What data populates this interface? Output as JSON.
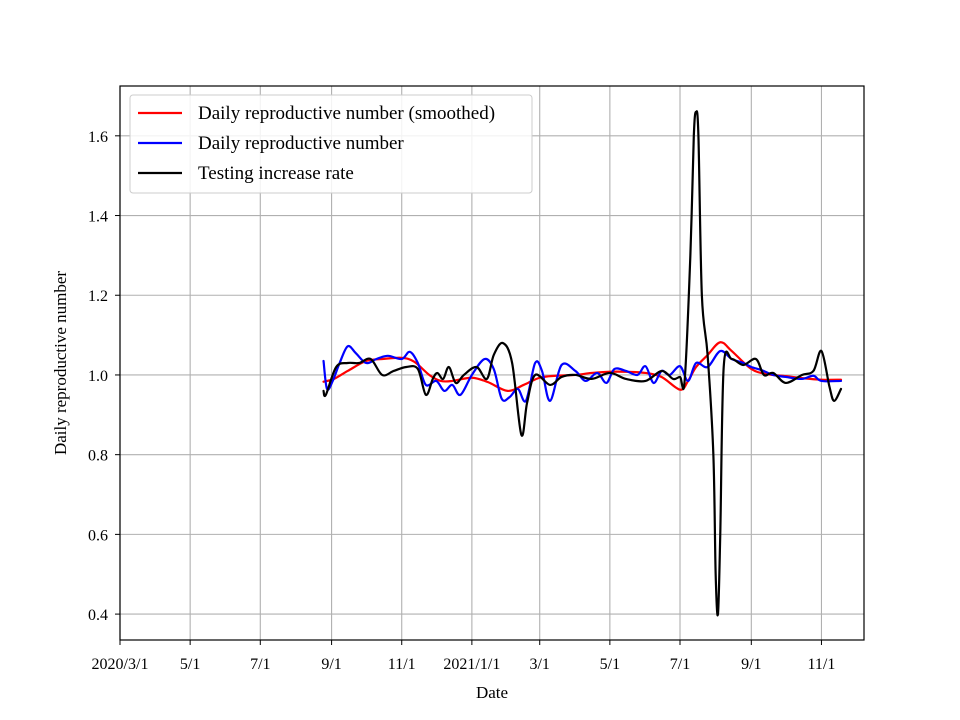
{
  "chart_data": {
    "type": "line",
    "xlabel": "Date",
    "ylabel": "Daily reproductive number",
    "xlim": [
      "2020-03-01",
      "2021-12-08"
    ],
    "ylim": [
      0.335,
      1.725
    ],
    "grid": true,
    "legend_position": "top-left",
    "x_ticks": [
      {
        "date": "2020-03-01",
        "label": "2020/3/1"
      },
      {
        "date": "2020-05-01",
        "label": "5/1"
      },
      {
        "date": "2020-07-01",
        "label": "7/1"
      },
      {
        "date": "2020-09-01",
        "label": "9/1"
      },
      {
        "date": "2020-11-01",
        "label": "11/1"
      },
      {
        "date": "2021-01-01",
        "label": "2021/1/1"
      },
      {
        "date": "2021-03-01",
        "label": "3/1"
      },
      {
        "date": "2021-05-01",
        "label": "5/1"
      },
      {
        "date": "2021-07-01",
        "label": "7/1"
      },
      {
        "date": "2021-09-01",
        "label": "9/1"
      },
      {
        "date": "2021-11-01",
        "label": "11/1"
      }
    ],
    "y_ticks": [
      {
        "value": 0.4,
        "label": "0.4"
      },
      {
        "value": 0.6,
        "label": "0.6"
      },
      {
        "value": 0.8,
        "label": "0.8"
      },
      {
        "value": 1.0,
        "label": "1.0"
      },
      {
        "value": 1.2,
        "label": "1.2"
      },
      {
        "value": 1.4,
        "label": "1.4"
      },
      {
        "value": 1.6,
        "label": "1.6"
      }
    ],
    "series": [
      {
        "name": "Daily reproductive number (smoothed)",
        "color": "#ff0000",
        "points": [
          [
            "2020-08-25",
            0.983
          ],
          [
            "2020-09-03",
            0.99
          ],
          [
            "2020-09-15",
            1.01
          ],
          [
            "2020-10-01",
            1.035
          ],
          [
            "2020-10-15",
            1.04
          ],
          [
            "2020-11-01",
            1.043
          ],
          [
            "2020-11-12",
            1.033
          ],
          [
            "2020-11-25",
            1.0
          ],
          [
            "2020-12-05",
            0.985
          ],
          [
            "2020-12-15",
            0.985
          ],
          [
            "2021-01-01",
            0.993
          ],
          [
            "2021-01-15",
            0.982
          ],
          [
            "2021-02-01",
            0.96
          ],
          [
            "2021-02-15",
            0.975
          ],
          [
            "2021-03-01",
            0.993
          ],
          [
            "2021-03-15",
            0.998
          ],
          [
            "2021-04-01",
            1.0
          ],
          [
            "2021-04-15",
            1.005
          ],
          [
            "2021-05-01",
            1.008
          ],
          [
            "2021-05-15",
            1.008
          ],
          [
            "2021-06-01",
            1.005
          ],
          [
            "2021-06-15",
            0.995
          ],
          [
            "2021-07-01",
            0.963
          ],
          [
            "2021-07-08",
            0.985
          ],
          [
            "2021-07-15",
            1.02
          ],
          [
            "2021-07-25",
            1.05
          ],
          [
            "2021-08-05",
            1.082
          ],
          [
            "2021-08-15",
            1.06
          ],
          [
            "2021-09-01",
            1.015
          ],
          [
            "2021-09-15",
            1.002
          ],
          [
            "2021-10-01",
            0.997
          ],
          [
            "2021-10-15",
            0.992
          ],
          [
            "2021-11-01",
            0.988
          ],
          [
            "2021-11-18",
            0.988
          ]
        ]
      },
      {
        "name": "Daily reproductive number",
        "color": "#0000ff",
        "points": [
          [
            "2020-08-25",
            1.035
          ],
          [
            "2020-08-28",
            0.965
          ],
          [
            "2020-09-02",
            0.985
          ],
          [
            "2020-09-08",
            1.03
          ],
          [
            "2020-09-15",
            1.072
          ],
          [
            "2020-09-22",
            1.055
          ],
          [
            "2020-10-01",
            1.03
          ],
          [
            "2020-10-10",
            1.04
          ],
          [
            "2020-10-20",
            1.048
          ],
          [
            "2020-11-01",
            1.04
          ],
          [
            "2020-11-08",
            1.058
          ],
          [
            "2020-11-15",
            1.03
          ],
          [
            "2020-11-22",
            0.975
          ],
          [
            "2020-12-01",
            0.985
          ],
          [
            "2020-12-08",
            0.96
          ],
          [
            "2020-12-15",
            0.975
          ],
          [
            "2020-12-22",
            0.95
          ],
          [
            "2021-01-01",
            1.0
          ],
          [
            "2021-01-12",
            1.04
          ],
          [
            "2021-01-20",
            1.015
          ],
          [
            "2021-01-27",
            0.94
          ],
          [
            "2021-02-03",
            0.945
          ],
          [
            "2021-02-10",
            0.965
          ],
          [
            "2021-02-17",
            0.935
          ],
          [
            "2021-02-25",
            1.03
          ],
          [
            "2021-03-03",
            1.01
          ],
          [
            "2021-03-10",
            0.935
          ],
          [
            "2021-03-20",
            1.025
          ],
          [
            "2021-04-01",
            1.01
          ],
          [
            "2021-04-10",
            0.985
          ],
          [
            "2021-04-20",
            1.005
          ],
          [
            "2021-04-28",
            0.98
          ],
          [
            "2021-05-05",
            1.015
          ],
          [
            "2021-05-15",
            1.01
          ],
          [
            "2021-05-25",
            1.0
          ],
          [
            "2021-06-01",
            1.022
          ],
          [
            "2021-06-08",
            0.98
          ],
          [
            "2021-06-15",
            1.01
          ],
          [
            "2021-06-22",
            1.0
          ],
          [
            "2021-07-01",
            1.022
          ],
          [
            "2021-07-08",
            0.985
          ],
          [
            "2021-07-15",
            1.03
          ],
          [
            "2021-07-25",
            1.02
          ],
          [
            "2021-08-05",
            1.06
          ],
          [
            "2021-08-15",
            1.04
          ],
          [
            "2021-08-25",
            1.03
          ],
          [
            "2021-09-01",
            1.02
          ],
          [
            "2021-09-10",
            1.012
          ],
          [
            "2021-09-20",
            1.0
          ],
          [
            "2021-10-01",
            0.995
          ],
          [
            "2021-10-15",
            0.99
          ],
          [
            "2021-10-25",
            0.998
          ],
          [
            "2021-11-01",
            0.985
          ],
          [
            "2021-11-18",
            0.985
          ]
        ]
      },
      {
        "name": "Testing increase rate",
        "color": "#000000",
        "points": [
          [
            "2020-08-25",
            0.96
          ],
          [
            "2020-08-27",
            0.95
          ],
          [
            "2020-09-05",
            1.02
          ],
          [
            "2020-09-15",
            1.03
          ],
          [
            "2020-09-25",
            1.03
          ],
          [
            "2020-10-05",
            1.04
          ],
          [
            "2020-10-15",
            1.0
          ],
          [
            "2020-10-25",
            1.01
          ],
          [
            "2020-11-05",
            1.02
          ],
          [
            "2020-11-15",
            1.015
          ],
          [
            "2020-11-22",
            0.95
          ],
          [
            "2020-11-28",
            0.99
          ],
          [
            "2020-12-02",
            1.005
          ],
          [
            "2020-12-07",
            0.99
          ],
          [
            "2020-12-12",
            1.02
          ],
          [
            "2020-12-18",
            0.98
          ],
          [
            "2020-12-25",
            1.0
          ],
          [
            "2021-01-05",
            1.02
          ],
          [
            "2021-01-14",
            0.99
          ],
          [
            "2021-01-20",
            1.05
          ],
          [
            "2021-01-28",
            1.08
          ],
          [
            "2021-02-05",
            1.03
          ],
          [
            "2021-02-13",
            0.85
          ],
          [
            "2021-02-18",
            0.93
          ],
          [
            "2021-02-25",
            1.0
          ],
          [
            "2021-03-10",
            0.975
          ],
          [
            "2021-03-20",
            0.995
          ],
          [
            "2021-04-01",
            1.0
          ],
          [
            "2021-04-15",
            0.99
          ],
          [
            "2021-05-01",
            1.005
          ],
          [
            "2021-05-15",
            0.99
          ],
          [
            "2021-06-01",
            0.985
          ],
          [
            "2021-06-15",
            1.01
          ],
          [
            "2021-06-25",
            0.99
          ],
          [
            "2021-07-01",
            0.995
          ],
          [
            "2021-07-05",
            0.985
          ],
          [
            "2021-07-10",
            1.3
          ],
          [
            "2021-07-13",
            1.6
          ],
          [
            "2021-07-15",
            1.66
          ],
          [
            "2021-07-17",
            1.6
          ],
          [
            "2021-07-20",
            1.2
          ],
          [
            "2021-07-25",
            1.05
          ],
          [
            "2021-07-30",
            0.8
          ],
          [
            "2021-08-01",
            0.5
          ],
          [
            "2021-08-03",
            0.4
          ],
          [
            "2021-08-05",
            0.6
          ],
          [
            "2021-08-08",
            1.02
          ],
          [
            "2021-08-15",
            1.04
          ],
          [
            "2021-08-25",
            1.025
          ],
          [
            "2021-09-05",
            1.04
          ],
          [
            "2021-09-12",
            1.0
          ],
          [
            "2021-09-20",
            1.005
          ],
          [
            "2021-10-01",
            0.98
          ],
          [
            "2021-10-15",
            1.0
          ],
          [
            "2021-10-25",
            1.01
          ],
          [
            "2021-11-01",
            1.06
          ],
          [
            "2021-11-08",
            0.97
          ],
          [
            "2021-11-12",
            0.935
          ],
          [
            "2021-11-18",
            0.965
          ]
        ]
      }
    ]
  }
}
